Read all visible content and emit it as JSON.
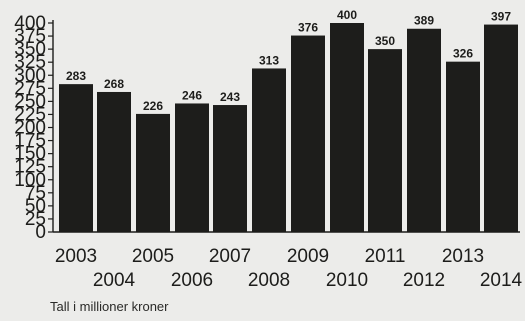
{
  "chart_data": {
    "type": "bar",
    "categories": [
      "2003",
      "2004",
      "2005",
      "2006",
      "2007",
      "2008",
      "2009",
      "2010",
      "2011",
      "2012",
      "2013",
      "2014"
    ],
    "values": [
      283,
      268,
      226,
      246,
      243,
      313,
      376,
      400,
      350,
      389,
      326,
      397
    ],
    "data_labels": [
      "283",
      "268",
      "226",
      "246",
      "243",
      "313",
      "376",
      "400",
      "350",
      "389",
      "326",
      "397"
    ],
    "ylim": [
      0,
      400
    ],
    "yticks": [
      0,
      25,
      50,
      75,
      100,
      125,
      150,
      175,
      200,
      225,
      250,
      275,
      300,
      325,
      350,
      375,
      400
    ],
    "ytick_labels": [
      "0",
      "25",
      "50",
      "75",
      "100",
      "125",
      "150",
      "175",
      "200",
      "225",
      "250",
      "275",
      "300",
      "325",
      "350",
      "375",
      "400"
    ],
    "xlabel": "",
    "ylabel": "",
    "grid": false,
    "legend": "none",
    "bar_color": "#1d1d1b",
    "footnote": "Tall i millioner kroner"
  }
}
